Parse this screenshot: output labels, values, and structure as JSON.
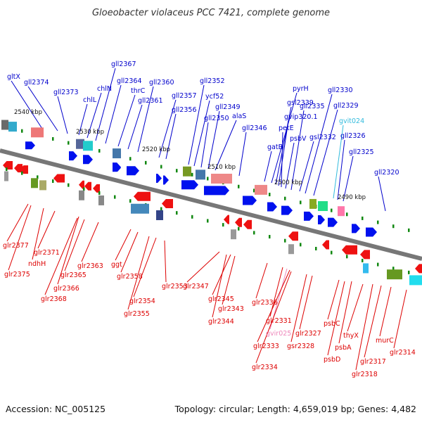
{
  "title": "Gloeobacter violaceus PCC 7421, complete genome",
  "footer": {
    "accession": "Accession: NC_005125",
    "summary": "Topology: circular; Length: 4,659,019 bp; Genes: 4,482"
  },
  "colors": {
    "forward_label": "#0000cc",
    "reverse_label": "#dd0000",
    "rna_label": "#33bbdd",
    "rna_reverse_label": "#ee88bb",
    "forward_arrow": "#0011ee",
    "reverse_arrow": "#ee1111",
    "backbone": "#777777"
  },
  "scale_ticks": [
    "2540 kbp",
    "2530 kbp",
    "2520 kbp",
    "2510 kbp",
    "2500 kbp",
    "2490 kbp"
  ],
  "forward_genes": [
    "gltX",
    "gll2374",
    "gll2373",
    "chlL",
    "chlN",
    "gll2367",
    "gll2364",
    "thrC",
    "gll2361",
    "gll2360",
    "gll2357",
    "gll2356",
    "gll2352",
    "ycf52",
    "gll2350",
    "gll2349",
    "alaS",
    "gll2346",
    "gatB",
    "pyrH",
    "gsl2339",
    "gvip320.1",
    "petE",
    "psbV",
    "gll2335",
    "gsl2332",
    "gll2330",
    "gll2329",
    "gvit024",
    "gll2326",
    "gll2325",
    "gll2320"
  ],
  "reverse_genes": [
    "glr2377",
    "glr2375",
    "ndhH",
    "glr2371",
    "glr2366",
    "glr2368",
    "glr2365",
    "glr2363",
    "ggt",
    "glr2358",
    "glr2354",
    "glr2355",
    "glr2353",
    "glr2347",
    "glr2345",
    "glr2343",
    "glr2344",
    "glr2336",
    "glr2331",
    "gvir025",
    "glr2333",
    "glr2334",
    "gsr2328",
    "glr2327",
    "psbC",
    "thyX",
    "psbA",
    "psbD",
    "murC",
    "glr2317",
    "glr2318",
    "glr2314"
  ]
}
